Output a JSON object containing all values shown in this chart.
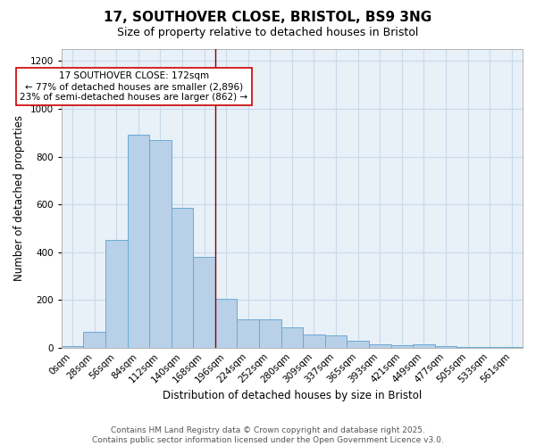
{
  "title_line1": "17, SOUTHOVER CLOSE, BRISTOL, BS9 3NG",
  "title_line2": "Size of property relative to detached houses in Bristol",
  "xlabel": "Distribution of detached houses by size in Bristol",
  "ylabel": "Number of detached properties",
  "bar_values": [
    5,
    65,
    450,
    890,
    870,
    585,
    380,
    205,
    120,
    120,
    85,
    55,
    50,
    28,
    15,
    10,
    15,
    5,
    3,
    2,
    1
  ],
  "bar_labels": [
    "0sqm",
    "28sqm",
    "56sqm",
    "84sqm",
    "112sqm",
    "140sqm",
    "168sqm",
    "196sqm",
    "224sqm",
    "252sqm",
    "280sqm",
    "309sqm",
    "337sqm",
    "365sqm",
    "393sqm",
    "421sqm",
    "449sqm",
    "477sqm",
    "505sqm",
    "533sqm",
    "561sqm"
  ],
  "bar_color": "#b8d0e8",
  "bar_edge_color": "#6aaad4",
  "grid_color": "#c8daea",
  "bg_color": "#e8f0f8",
  "vline_color": "#8b0000",
  "annotation_text": "17 SOUTHOVER CLOSE: 172sqm\n← 77% of detached houses are smaller (2,896)\n23% of semi-detached houses are larger (862) →",
  "annotation_box_color": "white",
  "annotation_box_edge": "#cc0000",
  "ylim": [
    0,
    1250
  ],
  "yticks": [
    0,
    200,
    400,
    600,
    800,
    1000,
    1200
  ],
  "footnote": "Contains HM Land Registry data © Crown copyright and database right 2025.\nContains public sector information licensed under the Open Government Licence v3.0.",
  "title_fontsize": 11,
  "subtitle_fontsize": 9,
  "label_fontsize": 8.5,
  "tick_fontsize": 7.5,
  "footnote_fontsize": 6.5,
  "annot_fontsize": 7.5
}
